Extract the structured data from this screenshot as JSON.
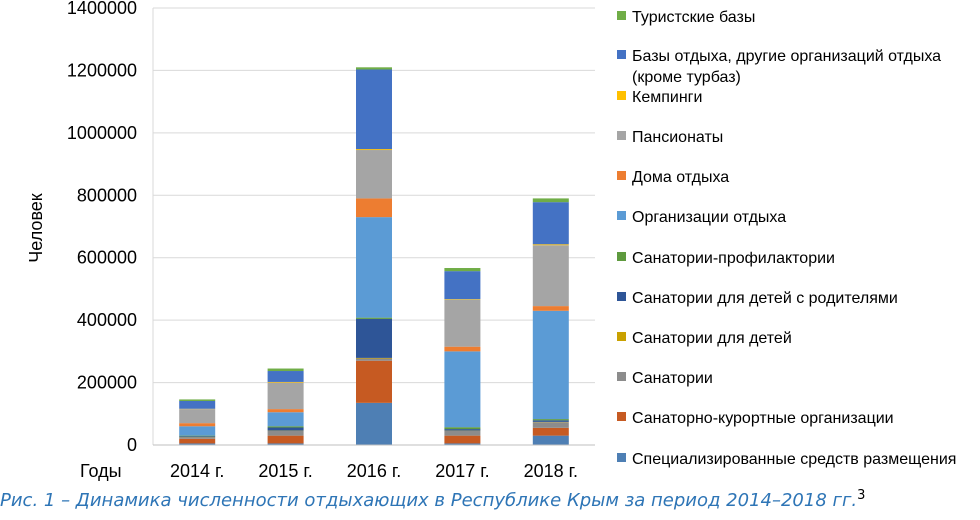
{
  "chart_data": {
    "type": "bar",
    "stacked": true,
    "ylabel": "Человек",
    "xlabel": "Годы",
    "ylim": [
      0,
      1400000
    ],
    "yticks": [
      "0",
      "200000",
      "400000",
      "600000",
      "800000",
      "1000000",
      "1200000",
      "1400000"
    ],
    "categories": [
      "2014 г.",
      "2015 г.",
      "2016 г.",
      "2017 г.",
      "2018 г."
    ],
    "grid": true,
    "legend_position": "right",
    "series": [
      {
        "name": "Специализированные средств размещения",
        "color": "#4e7fb4",
        "values": [
          5000,
          5000,
          135000,
          5000,
          30000
        ]
      },
      {
        "name": "Санаторно-курортные организации",
        "color": "#c65a22",
        "values": [
          15000,
          25000,
          135000,
          25000,
          25000
        ]
      },
      {
        "name": "Санатории",
        "color": "#8c8c8c",
        "values": [
          4000,
          15000,
          7000,
          15000,
          18000
        ]
      },
      {
        "name": "Санатории для детей",
        "color": "#c9a100",
        "values": [
          1000,
          1000,
          2000,
          1000,
          1000
        ]
      },
      {
        "name": "Санатории для детей с родителями",
        "color": "#2e5597",
        "values": [
          3000,
          10000,
          125000,
          5000,
          5000
        ]
      },
      {
        "name": "Санатории-профилактории",
        "color": "#5e9a3e",
        "values": [
          2000,
          4000,
          4000,
          6000,
          4000
        ]
      },
      {
        "name": "Организации отдыха",
        "color": "#5b9bd5",
        "values": [
          30000,
          45000,
          322000,
          243000,
          347000
        ]
      },
      {
        "name": "Дома отдыха",
        "color": "#ed7d31",
        "values": [
          10000,
          10000,
          60000,
          15000,
          15000
        ]
      },
      {
        "name": "Пансионаты",
        "color": "#a5a5a5",
        "values": [
          45000,
          85000,
          155000,
          150000,
          195000
        ]
      },
      {
        "name": "Кемпинги",
        "color": "#ffc000",
        "values": [
          1000,
          2000,
          3000,
          2000,
          3000
        ]
      },
      {
        "name": "Базы отдыха, другие организаций отдыха (кроме турбаз)",
        "color": "#4472c4",
        "values": [
          25000,
          35000,
          255000,
          90000,
          135000
        ]
      },
      {
        "name": "Туристские базы",
        "color": "#70ad47",
        "values": [
          5000,
          8000,
          7000,
          10000,
          12000
        ]
      }
    ],
    "legend_labels": [
      [
        "Туристские базы"
      ],
      [
        "Базы отдыха, другие организаций отдыха",
        "(кроме турбаз)"
      ],
      [
        "Кемпинги"
      ],
      [
        "Пансионаты"
      ],
      [
        "Дома отдыха"
      ],
      [
        "Организации отдыха"
      ],
      [
        "Санатории-профилактории"
      ],
      [
        "Санатории для детей с родителями"
      ],
      [
        "Санатории для детей"
      ],
      [
        "Санатории"
      ],
      [
        "Санаторно-курортные организации"
      ],
      [
        "Специализированные средств размещения"
      ]
    ]
  },
  "caption": {
    "text": "Рис. 1 – Динамика численности отдыхающих в Республике Крым за период 2014–2018 гг.",
    "footnote": "3"
  }
}
